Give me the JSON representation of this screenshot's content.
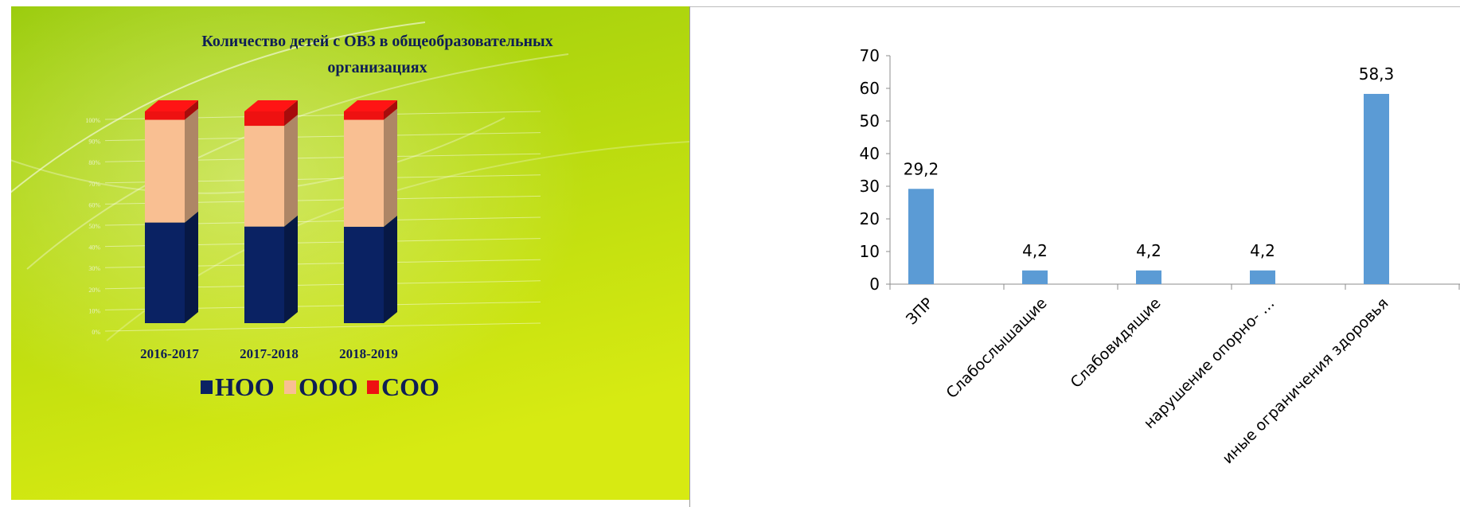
{
  "chart_data": [
    {
      "type": "bar",
      "stacked": true,
      "percent_stacked": true,
      "title": "Количество детей с ОВЗ в общеобразовательных организациях",
      "title_lines": [
        "Количество детей с ОВЗ в общеобразовательных",
        "организациях"
      ],
      "categories": [
        "2016-2017",
        "2017-2018",
        "2018-2019"
      ],
      "series": [
        {
          "name": "НОО",
          "values": [
            48,
            47,
            46
          ],
          "color": "#0a2263"
        },
        {
          "name": "ООО",
          "values": [
            49,
            49,
            51
          ],
          "color": "#f9bf92"
        },
        {
          "name": "СОО",
          "values": [
            4,
            7,
            4
          ],
          "color": "#ee1111"
        }
      ],
      "y_ticks": [
        "0%",
        "10%",
        "20%",
        "30%",
        "40%",
        "50%",
        "60%",
        "70%",
        "80%",
        "90%",
        "100%"
      ],
      "ylim": [
        0,
        100
      ],
      "grid": true,
      "legend_position": "bottom",
      "background_colors": [
        "#9bcc0c",
        "#d7ea12"
      ]
    },
    {
      "type": "bar",
      "categories": [
        "ЗПР",
        "Слабослышащие",
        "Слабовидящие",
        "нарушение опорно- …",
        "иные ограничения здоровья"
      ],
      "values": [
        29.2,
        4.2,
        4.2,
        4.2,
        58.3
      ],
      "value_labels": [
        "29,2",
        "4,2",
        "4,2",
        "4,2",
        "58,3"
      ],
      "y_ticks": [
        "0",
        "10",
        "20",
        "30",
        "40",
        "50",
        "60",
        "70"
      ],
      "ylim": [
        0,
        70
      ],
      "grid": false,
      "color": "#5b9bd5"
    }
  ]
}
